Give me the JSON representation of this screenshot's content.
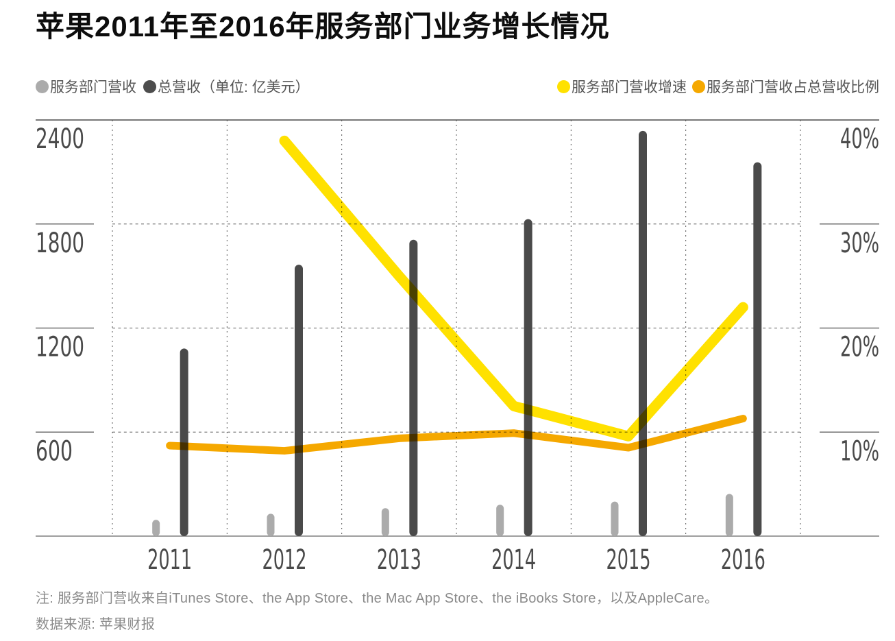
{
  "title": "苹果2011年至2016年服务部门业务增长情况",
  "legend": {
    "left": [
      {
        "label": "服务部门营收",
        "color": "#ABABAB"
      },
      {
        "label": "总营收（单位: 亿美元）",
        "color": "#4D4D4D"
      }
    ],
    "right": [
      {
        "label": "服务部门营收增速",
        "color": "#FFE100"
      },
      {
        "label": "服务部门营收占总营收比例",
        "color": "#F5A800"
      }
    ]
  },
  "notes": {
    "line1": "注: 服务部门营收来自iTunes Store、the App Store、the Mac App Store、the iBooks Store，以及AppleCare。",
    "line2": "数据来源: 苹果财报"
  },
  "chart_data": {
    "type": "bar+line combo",
    "title": "苹果2011年至2016年服务部门业务增长情况",
    "categories": [
      "2011",
      "2012",
      "2013",
      "2014",
      "2015",
      "2016"
    ],
    "series": [
      {
        "name": "服务部门营收",
        "type": "bar",
        "axis": "left",
        "color": "#ABABAB",
        "values": [
          94,
          129,
          161,
          181,
          199,
          243
        ]
      },
      {
        "name": "总营收",
        "type": "bar",
        "axis": "left",
        "color": "#4A4A4A",
        "values": [
          1082,
          1565,
          1709,
          1828,
          2337,
          2156
        ]
      },
      {
        "name": "服务部门营收增速",
        "type": "line",
        "axis": "right",
        "color": "#FFE100",
        "values": [
          null,
          38,
          25,
          12.5,
          9.6,
          22
        ]
      },
      {
        "name": "服务部门营收占总营收比例",
        "type": "line",
        "axis": "right",
        "color": "#F5A800",
        "values": [
          8.7,
          8.2,
          9.4,
          9.9,
          8.5,
          11.3
        ]
      }
    ],
    "left_axis": {
      "unit": "亿美元",
      "ticks": [
        2400,
        1800,
        1200,
        600
      ],
      "range": [
        0,
        2400
      ]
    },
    "right_axis": {
      "unit": "%",
      "ticks": [
        "40%",
        "30%",
        "20%",
        "10%"
      ],
      "tick_values": [
        40,
        30,
        20,
        10
      ],
      "range": [
        0,
        40
      ]
    },
    "grid": "dashed",
    "legend_position": "top"
  }
}
